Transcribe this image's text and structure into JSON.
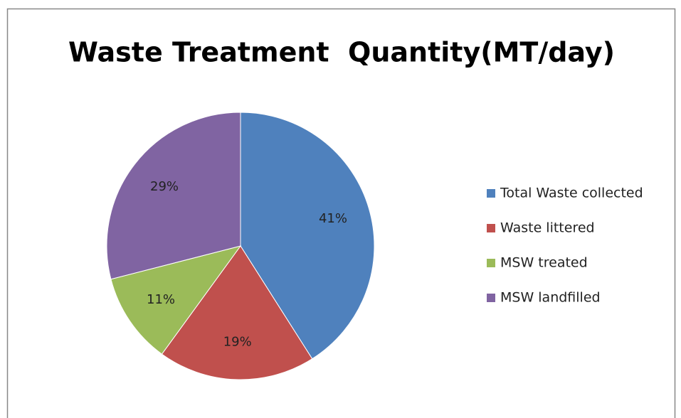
{
  "chart_data": {
    "type": "pie",
    "title": "Waste Treatment  Quantity(MT/day)",
    "categories": [
      "Total Waste collected",
      "Waste littered",
      "MSW treated",
      "MSW landfilled"
    ],
    "values": [
      41,
      19,
      11,
      29
    ],
    "value_labels": [
      "41%",
      "19%",
      "11%",
      "29%"
    ],
    "colors": [
      "#4f81bd",
      "#c0504d",
      "#9bbb59",
      "#8064a2"
    ],
    "legend": "right"
  }
}
